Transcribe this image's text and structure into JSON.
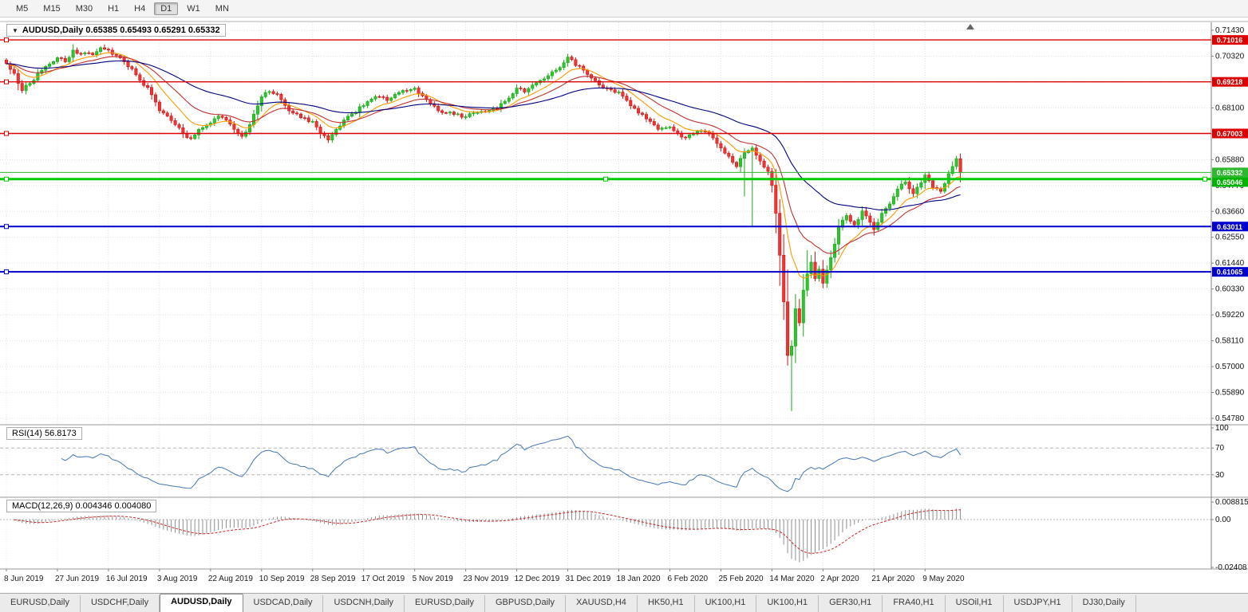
{
  "toolbar": {
    "timeframes": [
      "M5",
      "M15",
      "M30",
      "H1",
      "H4",
      "D1",
      "W1",
      "MN"
    ],
    "active": "D1"
  },
  "chart": {
    "title": "AUDUSD,Daily",
    "ohlc": {
      "open": "0.65385",
      "high": "0.65493",
      "low": "0.65291",
      "close": "0.65332"
    }
  },
  "rsi_panel": {
    "label": "RSI(14)",
    "value": "56.8173"
  },
  "macd_panel": {
    "label": "MACD(12,26,9)",
    "value_main": "0.004346",
    "value_signal": "0.004080"
  },
  "tabs": {
    "items": [
      "EURUSD,Daily",
      "USDCHF,Daily",
      "AUDUSD,Daily",
      "USDCAD,Daily",
      "USDCNH,Daily",
      "EURUSD,Daily",
      "GBPUSD,Daily",
      "XAUUSD,H4",
      "HK50,H1",
      "UK100,H1",
      "UK100,H1",
      "GER30,H1",
      "FRA40,H1",
      "USOil,H1",
      "USDJPY,H1",
      "DJ30,Daily"
    ],
    "active": "AUDUSD,Daily",
    "active_index": 2
  },
  "chart_data": {
    "type": "candlestick+indicators",
    "symbol": "AUDUSD",
    "timeframe": "Daily",
    "x_labels": [
      "8 Jun 2019",
      "27 Jun 2019",
      "16 Jul 2019",
      "3 Aug 2019",
      "22 Aug 2019",
      "10 Sep 2019",
      "28 Sep 2019",
      "17 Oct 2019",
      "5 Nov 2019",
      "23 Nov 2019",
      "12 Dec 2019",
      "31 Dec 2019",
      "18 Jan 2020",
      "6 Feb 2020",
      "25 Feb 2020",
      "14 Mar 2020",
      "2 Apr 2020",
      "21 Apr 2020",
      "9 May 2020"
    ],
    "candle_count": 244,
    "candles_per_label": 13,
    "price_axis": {
      "top": 0.7143,
      "step": 0.0111,
      "count": 16
    },
    "price_anchors": [
      [
        0,
        0.7
      ],
      [
        2,
        0.6958
      ],
      [
        4,
        0.6885
      ],
      [
        6,
        0.6915
      ],
      [
        8,
        0.6958
      ],
      [
        10,
        0.6988
      ],
      [
        13,
        0.7025
      ],
      [
        15,
        0.7008
      ],
      [
        17,
        0.7058
      ],
      [
        19,
        0.7042
      ],
      [
        22,
        0.7038
      ],
      [
        24,
        0.7068
      ],
      [
        26,
        0.7058
      ],
      [
        28,
        0.7035
      ],
      [
        30,
        0.7008
      ],
      [
        32,
        0.6978
      ],
      [
        34,
        0.6928
      ],
      [
        36,
        0.6898
      ],
      [
        39,
        0.6798
      ],
      [
        41,
        0.6775
      ],
      [
        43,
        0.6738
      ],
      [
        45,
        0.67
      ],
      [
        47,
        0.6678
      ],
      [
        49,
        0.6718
      ],
      [
        52,
        0.6745
      ],
      [
        54,
        0.6775
      ],
      [
        56,
        0.6758
      ],
      [
        58,
        0.6718
      ],
      [
        60,
        0.6688
      ],
      [
        62,
        0.6738
      ],
      [
        65,
        0.6858
      ],
      [
        67,
        0.688
      ],
      [
        69,
        0.6868
      ],
      [
        71,
        0.682
      ],
      [
        73,
        0.6788
      ],
      [
        75,
        0.6768
      ],
      [
        78,
        0.6752
      ],
      [
        80,
        0.67
      ],
      [
        82,
        0.6672
      ],
      [
        84,
        0.6718
      ],
      [
        86,
        0.6758
      ],
      [
        88,
        0.6785
      ],
      [
        91,
        0.682
      ],
      [
        93,
        0.6848
      ],
      [
        95,
        0.6858
      ],
      [
        97,
        0.6842
      ],
      [
        99,
        0.6868
      ],
      [
        101,
        0.6885
      ],
      [
        104,
        0.6895
      ],
      [
        106,
        0.6862
      ],
      [
        108,
        0.6828
      ],
      [
        110,
        0.6798
      ],
      [
        112,
        0.6788
      ],
      [
        114,
        0.6782
      ],
      [
        117,
        0.6772
      ],
      [
        119,
        0.6788
      ],
      [
        121,
        0.6795
      ],
      [
        123,
        0.68
      ],
      [
        125,
        0.6808
      ],
      [
        127,
        0.6838
      ],
      [
        130,
        0.6895
      ],
      [
        132,
        0.6878
      ],
      [
        134,
        0.6908
      ],
      [
        136,
        0.6928
      ],
      [
        138,
        0.6948
      ],
      [
        140,
        0.6972
      ],
      [
        143,
        0.7028
      ],
      [
        145,
        0.6992
      ],
      [
        147,
        0.6972
      ],
      [
        149,
        0.6938
      ],
      [
        151,
        0.6908
      ],
      [
        153,
        0.6892
      ],
      [
        156,
        0.6878
      ],
      [
        158,
        0.6842
      ],
      [
        160,
        0.6808
      ],
      [
        162,
        0.6782
      ],
      [
        164,
        0.6752
      ],
      [
        166,
        0.6718
      ],
      [
        169,
        0.6728
      ],
      [
        171,
        0.6702
      ],
      [
        173,
        0.6682
      ],
      [
        175,
        0.6698
      ],
      [
        177,
        0.6712
      ],
      [
        179,
        0.6698
      ],
      [
        182,
        0.6638
      ],
      [
        184,
        0.6602
      ],
      [
        186,
        0.6558
      ],
      [
        188,
        0.6618
      ],
      [
        190,
        0.6638
      ],
      [
        192,
        0.6582
      ],
      [
        194,
        0.6538
      ],
      [
        195,
        0.6478
      ],
      [
        196,
        0.6358
      ],
      [
        197,
        0.6178
      ],
      [
        198,
        0.5978
      ],
      [
        199,
        0.5748
      ],
      [
        200,
        0.5788
      ],
      [
        201,
        0.5948
      ],
      [
        202,
        0.5888
      ],
      [
        203,
        0.6028
      ],
      [
        204,
        0.6098
      ],
      [
        205,
        0.6148
      ],
      [
        206,
        0.6078
      ],
      [
        207,
        0.6118
      ],
      [
        208,
        0.6058
      ],
      [
        210,
        0.6168
      ],
      [
        212,
        0.6298
      ],
      [
        214,
        0.6348
      ],
      [
        216,
        0.6308
      ],
      [
        218,
        0.6368
      ],
      [
        221,
        0.6288
      ],
      [
        223,
        0.6358
      ],
      [
        225,
        0.6398
      ],
      [
        227,
        0.6462
      ],
      [
        229,
        0.6492
      ],
      [
        231,
        0.6442
      ],
      [
        234,
        0.6522
      ],
      [
        236,
        0.6468
      ],
      [
        238,
        0.6452
      ],
      [
        240,
        0.6528
      ],
      [
        242,
        0.6592
      ],
      [
        243,
        0.65332
      ]
    ],
    "wick_overrides": [
      [
        25,
        "high",
        0.7082
      ],
      [
        188,
        "low",
        0.643
      ],
      [
        190,
        "low",
        0.6302
      ],
      [
        200,
        "low",
        0.551
      ],
      [
        204,
        "high",
        0.62
      ]
    ],
    "hlines": [
      {
        "price": 0.71016,
        "color": "#dd0000",
        "width": 1.4,
        "label": "0.71016",
        "badge": "#dd0000",
        "handles": false
      },
      {
        "price": 0.69218,
        "color": "#dd0000",
        "width": 1.4,
        "label": "0.69218",
        "badge": "#dd0000",
        "handles": false
      },
      {
        "price": 0.67003,
        "color": "#dd0000",
        "width": 1.4,
        "label": "0.67003",
        "badge": "#dd0000",
        "handles": false
      },
      {
        "price": 0.65046,
        "color": "#00cc00",
        "width": 3,
        "label": "0.65046",
        "badge": "#00b300",
        "handles": true
      },
      {
        "price": 0.63011,
        "color": "#0000cc",
        "width": 2,
        "label": "0.63011",
        "badge": "#0000cc",
        "handles": false
      },
      {
        "price": 0.61065,
        "color": "#0000cc",
        "width": 2,
        "label": "0.61065",
        "badge": "#0000cc",
        "handles": false
      }
    ],
    "current_price": {
      "value": 0.65332,
      "label": "0.65332",
      "color": "#2eb82e"
    },
    "moving_averages": [
      {
        "period": 10,
        "color": "#ff9900"
      },
      {
        "period": 20,
        "color": "#c03030"
      },
      {
        "period": 50,
        "color": "#000080"
      }
    ],
    "rsi": {
      "period": 14,
      "levels": [
        70,
        30
      ],
      "color": "#4576b5",
      "axis_labels": [
        "100",
        "70",
        "30"
      ],
      "axis_values": [
        100,
        70,
        30
      ]
    },
    "macd": {
      "fast": 12,
      "slow": 26,
      "signal": 9,
      "histogram_color": "#8f8f8f",
      "signal_color": "#cc2222",
      "axis_labels": [
        "0.008815",
        "0.00",
        "-0.02408"
      ],
      "axis_values": [
        0.008815,
        0,
        -0.02408
      ]
    },
    "colors": {
      "candle_up": "#2fc42f",
      "candle_up_stroke": "#18a818",
      "candle_down": "#ef3535",
      "candle_down_stroke": "#d01414",
      "grid": "#e2e2e2"
    }
  }
}
